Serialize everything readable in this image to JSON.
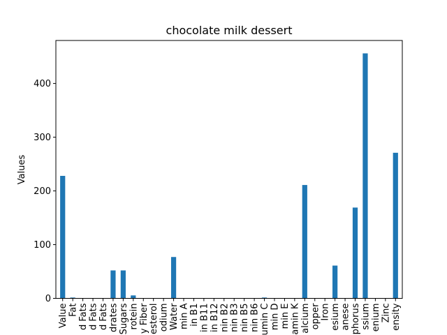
{
  "chart_data": {
    "type": "bar",
    "title": "chocolate milk dessert",
    "xlabel": "",
    "ylabel": "Values",
    "ylim": [
      0,
      480
    ],
    "yticks": [
      0,
      100,
      200,
      300,
      400
    ],
    "grid": false,
    "legend": "none",
    "bar_color": "#1f77b4",
    "categories": [
      "Value",
      "Fat",
      "d Fats",
      "d Fats",
      "d Fats",
      "drates",
      "Sugars",
      "rotein",
      "y Fiber",
      "esterol",
      "odium",
      "Water",
      "min A",
      "in B1",
      "in B11",
      "in B12",
      "nin B2",
      "nin B3",
      "nin B5",
      "nin B6",
      "umin C",
      "min D",
      "min E",
      "amin K",
      "alcium",
      "opper",
      "Iron",
      "esium",
      "anese",
      "phorus",
      "ssium",
      "enium",
      "Zinc",
      "ensity"
    ],
    "values": [
      228,
      1.5,
      0.3,
      0.3,
      0.3,
      52,
      52,
      5.5,
      0.3,
      0.3,
      0.3,
      77,
      0.3,
      0.3,
      0.3,
      0.3,
      0.3,
      0.3,
      0.3,
      0.3,
      1.5,
      0.3,
      0.3,
      0.3,
      211,
      0.3,
      0.3,
      61,
      0.3,
      169,
      456,
      0.3,
      0.3,
      271
    ]
  }
}
